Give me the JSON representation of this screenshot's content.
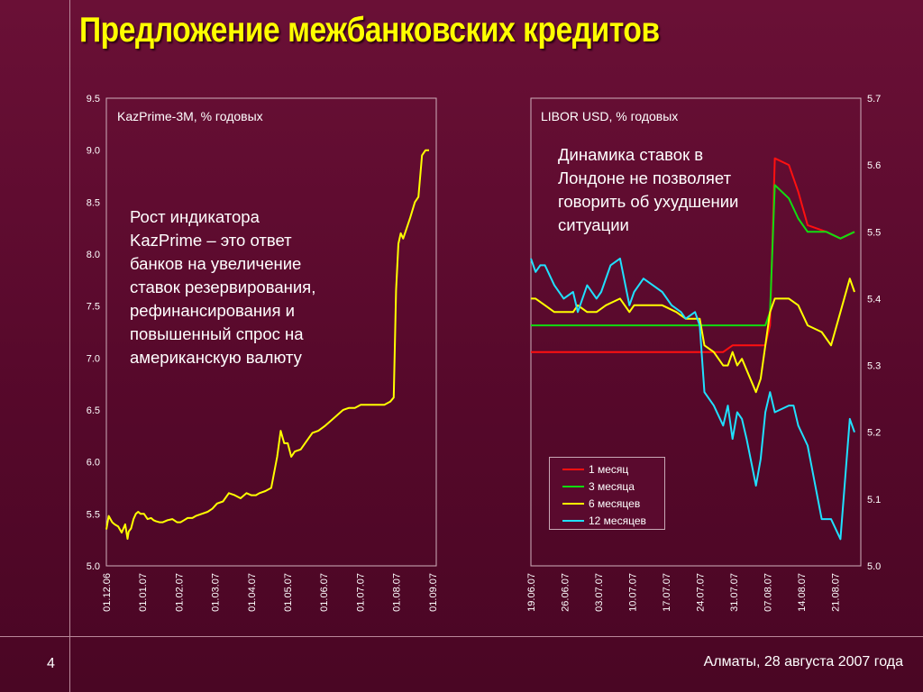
{
  "slide": {
    "title": "Предложение межбанковских кредитов",
    "number": "4",
    "footer": "Алматы, 28 августа 2007 года"
  },
  "annotations": {
    "left": [
      "Рост индикатора",
      "KazPrime – это ответ",
      "банков на увеличение",
      "ставок резервирования,",
      "рефинансирования и",
      "повышенный спрос на",
      "американскую валюту"
    ],
    "right": [
      "Динамика ставок в",
      "Лондоне не позволяет",
      "говорить об ухудшении",
      "ситуации"
    ]
  },
  "colors": {
    "kazprime": "#ffff00",
    "m1": "#ff1010",
    "m3": "#10dd10",
    "m6": "#ffff00",
    "m12": "#20e0ff"
  },
  "chart_data": [
    {
      "type": "line",
      "label": "KazPrime-3M, % годовых",
      "x_ticks": [
        "01.12.06",
        "01.01.07",
        "01.02.07",
        "01.03.07",
        "01.04.07",
        "01.05.07",
        "01.06.07",
        "01.07.07",
        "01.08.07",
        "01.09.07"
      ],
      "y_ticks": [
        "5.0",
        "5.5",
        "6.0",
        "6.5",
        "7.0",
        "7.5",
        "8.0",
        "8.5",
        "9.0",
        "9.5"
      ],
      "ylim": [
        5.0,
        9.5
      ],
      "xlim": [
        "2006-12-01",
        "2007-09-01"
      ],
      "series": [
        {
          "name": "KazPrime-3M",
          "x": [
            "2006-12-01",
            "2006-12-03",
            "2006-12-06",
            "2006-12-08",
            "2006-12-11",
            "2006-12-14",
            "2006-12-17",
            "2006-12-19",
            "2006-12-20",
            "2006-12-22",
            "2006-12-24",
            "2006-12-26",
            "2006-12-28",
            "2006-12-30",
            "2007-01-02",
            "2007-01-05",
            "2007-01-08",
            "2007-01-10",
            "2007-01-12",
            "2007-01-15",
            "2007-01-18",
            "2007-01-22",
            "2007-01-26",
            "2007-01-30",
            "2007-02-02",
            "2007-02-05",
            "2007-02-08",
            "2007-02-12",
            "2007-02-15",
            "2007-02-20",
            "2007-02-25",
            "2007-03-01",
            "2007-03-05",
            "2007-03-10",
            "2007-03-15",
            "2007-03-20",
            "2007-03-25",
            "2007-03-30",
            "2007-04-03",
            "2007-04-07",
            "2007-04-10",
            "2007-04-15",
            "2007-04-20",
            "2007-04-25",
            "2007-04-28",
            "2007-05-01",
            "2007-05-04",
            "2007-05-07",
            "2007-05-10",
            "2007-05-15",
            "2007-05-20",
            "2007-05-25",
            "2007-05-30",
            "2007-06-05",
            "2007-06-10",
            "2007-06-15",
            "2007-06-20",
            "2007-06-25",
            "2007-06-30",
            "2007-07-05",
            "2007-07-10",
            "2007-07-15",
            "2007-07-20",
            "2007-07-25",
            "2007-07-30",
            "2007-08-02",
            "2007-08-04",
            "2007-08-06",
            "2007-08-08",
            "2007-08-10",
            "2007-08-13",
            "2007-08-16",
            "2007-08-20",
            "2007-08-23",
            "2007-08-26",
            "2007-08-29",
            "2007-09-01"
          ],
          "values": [
            5.35,
            5.48,
            5.42,
            5.4,
            5.38,
            5.32,
            5.4,
            5.26,
            5.33,
            5.36,
            5.45,
            5.5,
            5.52,
            5.5,
            5.5,
            5.45,
            5.46,
            5.44,
            5.43,
            5.42,
            5.42,
            5.44,
            5.45,
            5.42,
            5.42,
            5.44,
            5.46,
            5.46,
            5.48,
            5.5,
            5.52,
            5.55,
            5.6,
            5.62,
            5.7,
            5.68,
            5.65,
            5.7,
            5.68,
            5.68,
            5.7,
            5.72,
            5.75,
            6.05,
            6.3,
            6.18,
            6.18,
            6.05,
            6.1,
            6.12,
            6.2,
            6.28,
            6.3,
            6.35,
            6.4,
            6.45,
            6.5,
            6.52,
            6.52,
            6.55,
            6.55,
            6.55,
            6.55,
            6.55,
            6.58,
            6.62,
            7.65,
            8.1,
            8.2,
            8.15,
            8.25,
            8.35,
            8.5,
            8.55,
            8.95,
            9.0,
            9.0
          ]
        }
      ]
    },
    {
      "type": "line",
      "label": "LIBOR USD, % годовых",
      "x_ticks": [
        "19.06.07",
        "26.06.07",
        "03.07.07",
        "10.07.07",
        "17.07.07",
        "24.07.07",
        "31.07.07",
        "07.08.07",
        "14.08.07",
        "21.08.07"
      ],
      "y_ticks": [
        "5.0",
        "5.1",
        "5.2",
        "5.3",
        "5.4",
        "5.5",
        "5.6",
        "5.7"
      ],
      "ylim": [
        5.0,
        5.7
      ],
      "xlim": [
        "2007-06-19",
        "2007-08-27"
      ],
      "legend": "inside, bottom-center",
      "series": [
        {
          "name": "1 месяц",
          "x": [
            "2007-06-19",
            "2007-06-29",
            "2007-07-10",
            "2007-07-20",
            "2007-07-26",
            "2007-07-28",
            "2007-07-30",
            "2007-08-01",
            "2007-08-03",
            "2007-08-06",
            "2007-08-08",
            "2007-08-09",
            "2007-08-10",
            "2007-08-13",
            "2007-08-15",
            "2007-08-17",
            "2007-08-21",
            "2007-08-24",
            "2007-08-27"
          ],
          "values": [
            5.32,
            5.32,
            5.32,
            5.32,
            5.32,
            5.32,
            5.32,
            5.33,
            5.33,
            5.33,
            5.33,
            5.36,
            5.61,
            5.6,
            5.56,
            5.51,
            5.5,
            5.49,
            5.5
          ]
        },
        {
          "name": "3 месяца",
          "x": [
            "2007-06-19",
            "2007-06-29",
            "2007-07-10",
            "2007-07-20",
            "2007-07-25",
            "2007-07-28",
            "2007-07-30",
            "2007-08-01",
            "2007-08-03",
            "2007-08-06",
            "2007-08-08",
            "2007-08-09",
            "2007-08-10",
            "2007-08-13",
            "2007-08-15",
            "2007-08-17",
            "2007-08-21",
            "2007-08-24",
            "2007-08-27"
          ],
          "values": [
            5.36,
            5.36,
            5.36,
            5.36,
            5.36,
            5.36,
            5.36,
            5.36,
            5.36,
            5.36,
            5.36,
            5.38,
            5.57,
            5.55,
            5.52,
            5.5,
            5.5,
            5.49,
            5.5
          ]
        },
        {
          "name": "6 месяцев",
          "x": [
            "2007-06-19",
            "2007-06-20",
            "2007-06-22",
            "2007-06-24",
            "2007-06-26",
            "2007-06-28",
            "2007-06-29",
            "2007-07-01",
            "2007-07-03",
            "2007-07-05",
            "2007-07-08",
            "2007-07-10",
            "2007-07-11",
            "2007-07-13",
            "2007-07-17",
            "2007-07-20",
            "2007-07-22",
            "2007-07-24",
            "2007-07-25",
            "2007-07-26",
            "2007-07-28",
            "2007-07-30",
            "2007-07-31",
            "2007-08-01",
            "2007-08-02",
            "2007-08-03",
            "2007-08-06",
            "2007-08-07",
            "2007-08-09",
            "2007-08-10",
            "2007-08-13",
            "2007-08-15",
            "2007-08-17",
            "2007-08-20",
            "2007-08-22",
            "2007-08-24",
            "2007-08-26",
            "2007-08-27"
          ],
          "values": [
            5.4,
            5.4,
            5.39,
            5.38,
            5.38,
            5.38,
            5.39,
            5.38,
            5.38,
            5.39,
            5.4,
            5.38,
            5.39,
            5.39,
            5.39,
            5.38,
            5.37,
            5.37,
            5.37,
            5.33,
            5.32,
            5.3,
            5.3,
            5.32,
            5.3,
            5.31,
            5.26,
            5.28,
            5.38,
            5.4,
            5.4,
            5.39,
            5.36,
            5.35,
            5.33,
            5.38,
            5.43,
            5.41
          ]
        },
        {
          "name": "12 месяцев",
          "x": [
            "2007-06-19",
            "2007-06-20",
            "2007-06-21",
            "2007-06-22",
            "2007-06-24",
            "2007-06-26",
            "2007-06-28",
            "2007-06-29",
            "2007-07-01",
            "2007-07-03",
            "2007-07-04",
            "2007-07-06",
            "2007-07-08",
            "2007-07-10",
            "2007-07-11",
            "2007-07-13",
            "2007-07-15",
            "2007-07-17",
            "2007-07-19",
            "2007-07-21",
            "2007-07-22",
            "2007-07-24",
            "2007-07-25",
            "2007-07-26",
            "2007-07-28",
            "2007-07-30",
            "2007-07-31",
            "2007-08-01",
            "2007-08-02",
            "2007-08-03",
            "2007-08-04",
            "2007-08-06",
            "2007-08-07",
            "2007-08-08",
            "2007-08-09",
            "2007-08-10",
            "2007-08-13",
            "2007-08-14",
            "2007-08-15",
            "2007-08-17",
            "2007-08-20",
            "2007-08-21",
            "2007-08-22",
            "2007-08-24",
            "2007-08-26",
            "2007-08-27"
          ],
          "values": [
            5.46,
            5.44,
            5.45,
            5.45,
            5.42,
            5.4,
            5.41,
            5.38,
            5.42,
            5.4,
            5.41,
            5.45,
            5.46,
            5.39,
            5.41,
            5.43,
            5.42,
            5.41,
            5.39,
            5.38,
            5.37,
            5.38,
            5.36,
            5.26,
            5.24,
            5.21,
            5.24,
            5.19,
            5.23,
            5.22,
            5.19,
            5.12,
            5.16,
            5.23,
            5.26,
            5.23,
            5.24,
            5.24,
            5.21,
            5.18,
            5.07,
            5.07,
            5.07,
            5.04,
            5.22,
            5.2
          ]
        }
      ]
    }
  ]
}
